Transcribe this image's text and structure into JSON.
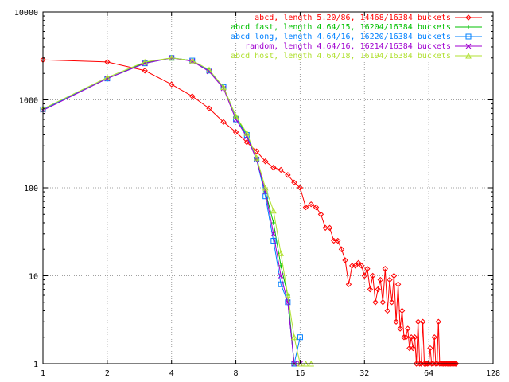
{
  "chart_data": {
    "type": "line",
    "title": "",
    "xlabel": "",
    "ylabel": "",
    "x_scale": "log2",
    "y_scale": "log10",
    "xlim": [
      1,
      128
    ],
    "ylim": [
      1,
      10000
    ],
    "x_ticks": [
      1,
      2,
      4,
      8,
      16,
      32,
      64,
      128
    ],
    "x_tick_labels": [
      "1",
      "2",
      "4",
      "8",
      "16",
      "32",
      "64",
      "128"
    ],
    "y_ticks": [
      1,
      10,
      100,
      1000,
      10000
    ],
    "y_tick_labels": [
      "1",
      "10",
      "100",
      "1000",
      "10000"
    ],
    "grid": true,
    "legend_position": "top-right",
    "series": [
      {
        "name": "abcd, length 5.20/86, 14468/16384 buckets",
        "color": "#ff0000",
        "marker": "diamond",
        "x": [
          1,
          2,
          3,
          4,
          5,
          6,
          7,
          8,
          9,
          10,
          11,
          12,
          13,
          14,
          15,
          16,
          17,
          18,
          19,
          20,
          21,
          22,
          23,
          24,
          25,
          26,
          27,
          28,
          29,
          30,
          31,
          32,
          33,
          34,
          35,
          36,
          37,
          38,
          39,
          40,
          41,
          42,
          43,
          44,
          45,
          46,
          47,
          48,
          49,
          50,
          51,
          52,
          53,
          54,
          55,
          56,
          57,
          58,
          59,
          60,
          61,
          62,
          63,
          64,
          65,
          66,
          67,
          68,
          69,
          70,
          71,
          72,
          73,
          74,
          75,
          76,
          77,
          78,
          79,
          80,
          81,
          82,
          83,
          84,
          85,
          86
        ],
        "y": [
          2850,
          2700,
          2150,
          1500,
          1100,
          800,
          560,
          430,
          330,
          260,
          200,
          170,
          160,
          140,
          115,
          100,
          60,
          65,
          60,
          50,
          35,
          35,
          25,
          25,
          20,
          15,
          8,
          13,
          13,
          14,
          13,
          10,
          12,
          7,
          10,
          5,
          7,
          9,
          5,
          12,
          4,
          9,
          5,
          10,
          3,
          8,
          2.5,
          4,
          2,
          2,
          2.5,
          1.5,
          2,
          1.5,
          2,
          1,
          3,
          1,
          1,
          3,
          1,
          1,
          1,
          1,
          1.5,
          1,
          1,
          2,
          1,
          1,
          3,
          1,
          1,
          1,
          1,
          1,
          1,
          1,
          1,
          1,
          1,
          1,
          1,
          1,
          1,
          1
        ]
      },
      {
        "name": "abcd fast, length 4.64/15, 16204/16384 buckets",
        "color": "#00c000",
        "marker": "plus",
        "x": [
          1,
          2,
          3,
          4,
          5,
          6,
          7,
          8,
          9,
          10,
          11,
          12,
          13,
          14,
          15
        ],
        "y": [
          780,
          1750,
          2650,
          3000,
          2800,
          2150,
          1400,
          650,
          400,
          210,
          90,
          40,
          13,
          6,
          1
        ]
      },
      {
        "name": "abcd long, length 4.64/16, 16220/16384 buckets",
        "color": "#0080ff",
        "marker": "square",
        "x": [
          1,
          2,
          3,
          4,
          5,
          6,
          7,
          8,
          9,
          10,
          11,
          12,
          13,
          14,
          15,
          16
        ],
        "y": [
          780,
          1750,
          2600,
          3000,
          2800,
          2150,
          1400,
          600,
          400,
          210,
          80,
          25,
          8,
          5,
          1,
          2
        ]
      },
      {
        "name": "random, length 4.64/16, 16214/16384 buckets",
        "color": "#a000d0",
        "marker": "cross",
        "x": [
          1,
          2,
          3,
          4,
          5,
          6,
          7,
          8,
          9,
          10,
          11,
          12,
          13,
          14,
          15,
          16
        ],
        "y": [
          760,
          1750,
          2600,
          3000,
          2750,
          2100,
          1350,
          600,
          380,
          210,
          90,
          30,
          10,
          5,
          1,
          1
        ]
      },
      {
        "name": "abcd host, length 4.64/18, 16194/16384 buckets",
        "color": "#b0e030",
        "marker": "triangle",
        "x": [
          1,
          2,
          3,
          4,
          5,
          6,
          7,
          8,
          9,
          10,
          11,
          12,
          13,
          14,
          15,
          16,
          17,
          18
        ],
        "y": [
          790,
          1800,
          2700,
          3000,
          2800,
          2200,
          1400,
          650,
          420,
          220,
          100,
          55,
          18,
          6,
          2,
          1,
          1,
          1
        ]
      }
    ]
  }
}
